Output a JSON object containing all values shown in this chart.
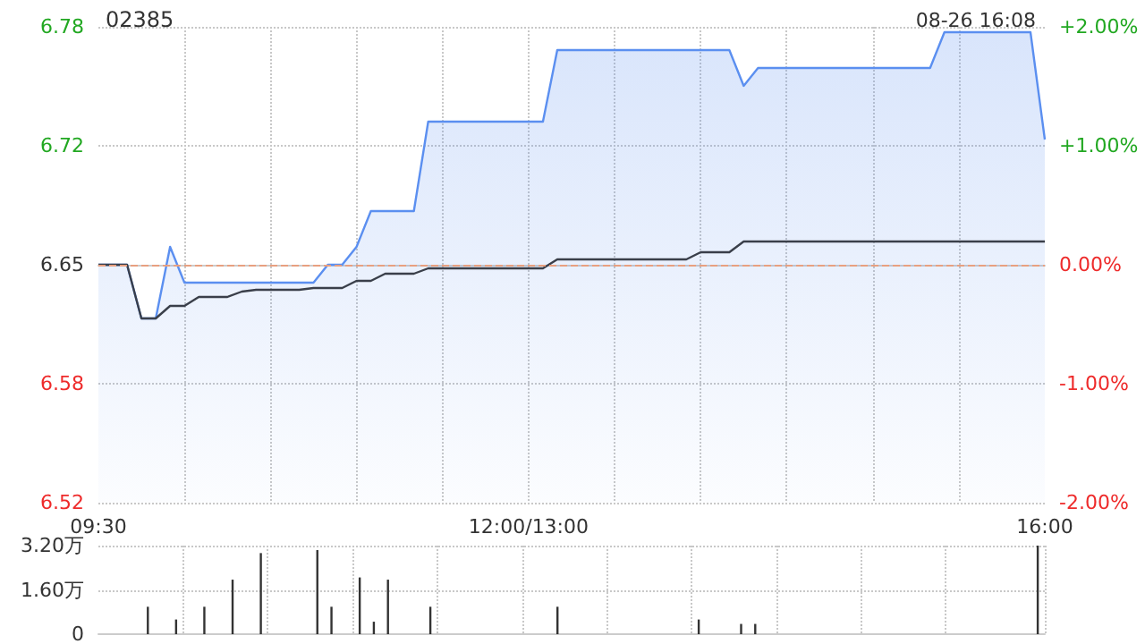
{
  "chart_data": [
    {
      "type": "line",
      "title": "02385",
      "annotations": [
        "08-26 16:08"
      ],
      "categories": [
        "09:30",
        null,
        null,
        null,
        null,
        null,
        null,
        null,
        null,
        null,
        null,
        null,
        null,
        null,
        null,
        null,
        null,
        null,
        null,
        null,
        null,
        null,
        null,
        null,
        null,
        null,
        null,
        null,
        null,
        null,
        "12:00/13:00",
        null,
        null,
        null,
        null,
        null,
        null,
        null,
        null,
        null,
        null,
        null,
        null,
        null,
        null,
        null,
        null,
        null,
        null,
        null,
        null,
        null,
        null,
        null,
        null,
        null,
        null,
        null,
        null,
        null,
        null,
        null,
        null,
        null,
        null,
        null,
        "16:00"
      ],
      "series": [
        {
          "type": "area",
          "color": "#5b8ff0",
          "values": [
            6.65,
            6.65,
            6.65,
            6.62,
            6.62,
            6.66,
            6.64,
            6.64,
            6.64,
            6.64,
            6.64,
            6.64,
            6.64,
            6.64,
            6.64,
            6.64,
            6.65,
            6.65,
            6.66,
            6.68,
            6.68,
            6.68,
            6.68,
            6.73,
            6.73,
            6.73,
            6.73,
            6.73,
            6.73,
            6.73,
            6.73,
            6.73,
            6.77,
            6.77,
            6.77,
            6.77,
            6.77,
            6.77,
            6.77,
            6.77,
            6.77,
            6.77,
            6.77,
            6.77,
            6.77,
            6.75,
            6.76,
            6.76,
            6.76,
            6.76,
            6.76,
            6.76,
            6.76,
            6.76,
            6.76,
            6.76,
            6.76,
            6.76,
            6.76,
            6.78,
            6.78,
            6.78,
            6.78,
            6.78,
            6.78,
            6.78,
            6.72
          ]
        },
        {
          "type": "line",
          "color": "#3a3f4a",
          "values": [
            6.65,
            6.65,
            6.65,
            6.62,
            6.62,
            6.627,
            6.627,
            6.632,
            6.632,
            6.632,
            6.635,
            6.636,
            6.636,
            6.636,
            6.636,
            6.637,
            6.637,
            6.637,
            6.641,
            6.641,
            6.645,
            6.645,
            6.645,
            6.648,
            6.648,
            6.648,
            6.648,
            6.648,
            6.648,
            6.648,
            6.648,
            6.648,
            6.653,
            6.653,
            6.653,
            6.653,
            6.653,
            6.653,
            6.653,
            6.653,
            6.653,
            6.653,
            6.657,
            6.657,
            6.657,
            6.663,
            6.663,
            6.663,
            6.663,
            6.663,
            6.663,
            6.663,
            6.663,
            6.663,
            6.663,
            6.663,
            6.663,
            6.663,
            6.663,
            6.663,
            6.663,
            6.663,
            6.663,
            6.663,
            6.663,
            6.663,
            6.663
          ]
        }
      ],
      "ylim": [
        6.517,
        6.783
      ],
      "yticks": [
        {
          "value": 6.517,
          "label": "6.52"
        },
        {
          "value": 6.5835,
          "label": "6.58"
        },
        {
          "value": 6.65,
          "label": "6.65"
        },
        {
          "value": 6.7165,
          "label": "6.72"
        },
        {
          "value": 6.783,
          "label": "6.78"
        }
      ],
      "y2lim": [
        -2,
        2
      ],
      "y2ticks": [
        {
          "value": -2,
          "label": "-2.00%"
        },
        {
          "value": -1,
          "label": "-1.00%"
        },
        {
          "value": 0,
          "label": "0.00%"
        },
        {
          "value": 1,
          "label": "+1.00%"
        },
        {
          "value": 2,
          "label": "+2.00%"
        }
      ],
      "ref_lines": [
        {
          "axis": "y",
          "value": 6.65,
          "color": "#e8a080",
          "line_style": "dashed"
        }
      ],
      "grid": true,
      "marker": "none",
      "line_style": "solid"
    },
    {
      "type": "bar",
      "color": "#333333",
      "tick_labels": "y",
      "categories": [
        null,
        null,
        null,
        null,
        null,
        null,
        null,
        null,
        null,
        null,
        null,
        null,
        null,
        null,
        null,
        null,
        null,
        null,
        null,
        null,
        null,
        null,
        null,
        null,
        null,
        null,
        null,
        null,
        null,
        null,
        null,
        null,
        null,
        null,
        null,
        null,
        null,
        null,
        null,
        null,
        null,
        null,
        null,
        null,
        null,
        null,
        null,
        null,
        null,
        null,
        null,
        null,
        null,
        null,
        null,
        null,
        null,
        null,
        null,
        null,
        null,
        null,
        null,
        null,
        null,
        null,
        null
      ],
      "values": [
        null,
        null,
        null,
        0.99,
        null,
        0.53,
        null,
        0.99,
        null,
        1.97,
        null,
        2.93,
        null,
        null,
        null,
        3.04,
        0.99,
        null,
        2.05,
        0.45,
        1.97,
        null,
        null,
        0.99,
        null,
        null,
        null,
        null,
        null,
        null,
        null,
        null,
        0.99,
        null,
        null,
        null,
        null,
        null,
        null,
        null,
        null,
        null,
        0.53,
        null,
        null,
        0.37,
        0.37,
        null,
        null,
        null,
        null,
        null,
        null,
        null,
        null,
        null,
        null,
        null,
        null,
        null,
        null,
        null,
        null,
        null,
        null,
        null,
        3.2
      ],
      "ylim": [
        0,
        3.2
      ],
      "yticks": [
        0,
        {
          "value": 1.6,
          "label": "1.60万"
        },
        {
          "value": 3.2,
          "label": "3.20万"
        }
      ],
      "grid": true
    }
  ]
}
